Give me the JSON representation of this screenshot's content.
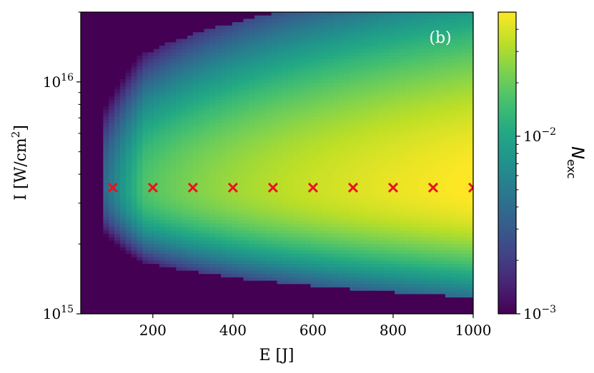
{
  "chart_data": {
    "type": "heatmap",
    "panel_label": "(b)",
    "xlabel": "E [J]",
    "ylabel": "I [W/cm²]",
    "ylabel_main": "I [W/cm",
    "ylabel_sup": "2",
    "ylabel_end": "]",
    "xlim": [
      20,
      1000
    ],
    "ylim": [
      1000000000000000.0,
      2e+16
    ],
    "yscale": "log",
    "x_ticks": [
      {
        "value": 200,
        "label": "200"
      },
      {
        "value": 400,
        "label": "400"
      },
      {
        "value": 600,
        "label": "600"
      },
      {
        "value": 800,
        "label": "800"
      },
      {
        "value": 1000,
        "label": "1000"
      }
    ],
    "y_ticks": [
      {
        "value": 1000000000000000.0,
        "base": "10",
        "exp": "15"
      },
      {
        "value": 1e+16,
        "base": "10",
        "exp": "16"
      }
    ],
    "colorbar": {
      "label_main": "N",
      "label_sub": "exc",
      "scale": "log",
      "range": [
        0.001,
        0.05
      ],
      "colormap": "viridis",
      "ticks": [
        {
          "value": 0.001,
          "base": "10",
          "exp": "−3"
        },
        {
          "value": 0.01,
          "base": "10",
          "exp": "−2"
        }
      ]
    },
    "markers": {
      "symbol": "x",
      "color": "#e8141b",
      "intensity": 3500000000000000.0,
      "energies": [
        100,
        200,
        300,
        400,
        500,
        600,
        700,
        800,
        900,
        1000
      ]
    },
    "grid": false
  }
}
